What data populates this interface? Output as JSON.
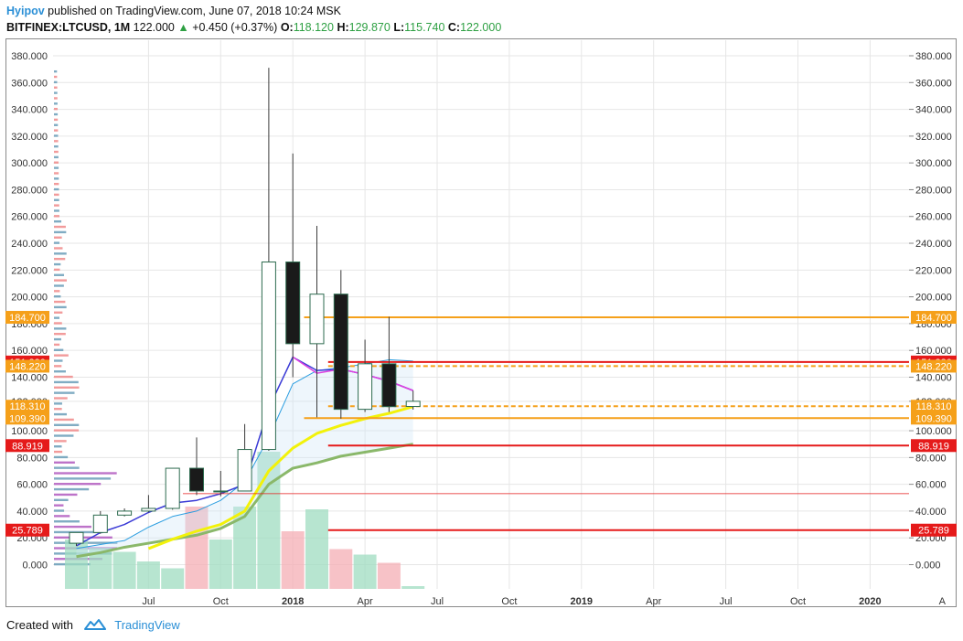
{
  "header": {
    "author": "Hyipov",
    "published_text": " published on TradingView.com, June 07, 2018 10:24 MSK",
    "symbol": "BITFINEX:LTCUSD, 1M",
    "last": "122.000",
    "change": "+0.450 (+0.37%)",
    "o_label": "O:",
    "o_value": "118.120",
    "h_label": "H:",
    "h_value": "129.870",
    "l_label": "L:",
    "l_value": "115.740",
    "c_label": "C:",
    "c_value": "122.000"
  },
  "footer": {
    "created_with": "Created with",
    "brand": "TradingView",
    "logo_icon": "tradingview-logo-icon"
  },
  "colors": {
    "up_body": "#ffffff",
    "down_body": "#1a1a1a",
    "ma_fast": "#3b3bd6",
    "ma_yellow": "#f2f20a",
    "ma_green": "#8ab86a",
    "ma_pink": "#e040e0",
    "orange": "#f5a01a",
    "red": "#e51a1a",
    "vol_up": "#9fdcc0",
    "vol_down": "#f4aeb4"
  },
  "chart_data": {
    "type": "candlestick",
    "symbol": "BITFINEX:LTCUSD",
    "interval": "1M",
    "ylim": [
      -20,
      390
    ],
    "y_ticks": [
      "380.000",
      "360.000",
      "340.000",
      "320.000",
      "300.000",
      "280.000",
      "260.000",
      "240.000",
      "220.000",
      "200.000",
      "180.000",
      "160.000",
      "140.000",
      "122.000",
      "100.000",
      "80.000",
      "60.000",
      "40.000",
      "20.000",
      "0.000"
    ],
    "y_tick_values": [
      380,
      360,
      340,
      320,
      300,
      280,
      260,
      240,
      220,
      200,
      180,
      160,
      140,
      122,
      100,
      80,
      60,
      40,
      20,
      0
    ],
    "x_ticks": [
      "Jul",
      "Oct",
      "2018",
      "Apr",
      "Jul",
      "Oct",
      "2019",
      "Apr",
      "Jul",
      "Oct",
      "2020",
      "A"
    ],
    "x_tick_bold": [
      false,
      false,
      true,
      false,
      false,
      false,
      true,
      false,
      false,
      false,
      true,
      false
    ],
    "x_tick_month_index": [
      6,
      9,
      12,
      15,
      18,
      21,
      24,
      27,
      30,
      33,
      36,
      39
    ],
    "first_month_index": 3,
    "candles": [
      {
        "month": "2017-04",
        "o": 16,
        "h": 24,
        "l": 14,
        "c": 24
      },
      {
        "month": "2017-05",
        "o": 24,
        "h": 40,
        "l": 23,
        "c": 37
      },
      {
        "month": "2017-06",
        "o": 37,
        "h": 42,
        "l": 36,
        "c": 40
      },
      {
        "month": "2017-07",
        "o": 40,
        "h": 52,
        "l": 39,
        "c": 42
      },
      {
        "month": "2017-08",
        "o": 42,
        "h": 72,
        "l": 41,
        "c": 72
      },
      {
        "month": "2017-09",
        "o": 72,
        "h": 95,
        "l": 52,
        "c": 55
      },
      {
        "month": "2017-10",
        "o": 55,
        "h": 70,
        "l": 51,
        "c": 55
      },
      {
        "month": "2017-11",
        "o": 55,
        "h": 105,
        "l": 55,
        "c": 86
      },
      {
        "month": "2017-12",
        "o": 86,
        "h": 371,
        "l": 85,
        "c": 226
      },
      {
        "month": "2018-01",
        "o": 226,
        "h": 307,
        "l": 140,
        "c": 165
      },
      {
        "month": "2018-02",
        "o": 165,
        "h": 253,
        "l": 110,
        "c": 202
      },
      {
        "month": "2018-03",
        "o": 202,
        "h": 220,
        "l": 109,
        "c": 116
      },
      {
        "month": "2018-04",
        "o": 116,
        "h": 168,
        "l": 114,
        "c": 150
      },
      {
        "month": "2018-05",
        "o": 150,
        "h": 185,
        "l": 114,
        "c": 118
      },
      {
        "month": "2018-06",
        "o": 118.12,
        "h": 129.87,
        "l": 115.74,
        "c": 122
      }
    ],
    "volume": [
      {
        "dir": "up",
        "v": 0.36
      },
      {
        "dir": "up",
        "v": 0.3
      },
      {
        "dir": "up",
        "v": 0.27
      },
      {
        "dir": "up",
        "v": 0.2
      },
      {
        "dir": "up",
        "v": 0.15
      },
      {
        "dir": "down",
        "v": 0.6
      },
      {
        "dir": "up",
        "v": 0.36
      },
      {
        "dir": "up",
        "v": 0.6
      },
      {
        "dir": "up",
        "v": 1.0
      },
      {
        "dir": "down",
        "v": 0.42
      },
      {
        "dir": "up",
        "v": 0.58
      },
      {
        "dir": "down",
        "v": 0.29
      },
      {
        "dir": "up",
        "v": 0.25
      },
      {
        "dir": "down",
        "v": 0.19
      },
      {
        "dir": "up",
        "v": 0.02
      }
    ],
    "ma_fast": [
      14,
      24,
      30,
      39,
      46,
      48,
      53,
      60,
      117,
      155,
      145,
      146,
      142,
      137,
      130
    ],
    "ma_pink": [
      null,
      null,
      null,
      null,
      null,
      null,
      null,
      null,
      null,
      155,
      143,
      146,
      142,
      137,
      130
    ],
    "ma_cyan": [
      12,
      15,
      18,
      28,
      36,
      40,
      48,
      62,
      95,
      135,
      145,
      147,
      150,
      153,
      152
    ],
    "ma_yellow": [
      null,
      null,
      null,
      12,
      19,
      25,
      30,
      40,
      70,
      87,
      98,
      104,
      109,
      113,
      118
    ],
    "ma_green": [
      6,
      9,
      13,
      16,
      19,
      22,
      27,
      36,
      60,
      72,
      76,
      81,
      84,
      87,
      90
    ],
    "levels": [
      {
        "label": "184.700",
        "value": 184.7,
        "color": "orange",
        "style": "solid",
        "start_index": 13
      },
      {
        "label": "151.330",
        "value": 151.33,
        "color": "red",
        "style": "solid",
        "start_index": 14
      },
      {
        "label": "148.220",
        "value": 148.22,
        "color": "orange",
        "style": "dashed",
        "start_index": 14
      },
      {
        "label": "122.000",
        "value": 122.0,
        "color": "none",
        "style": "none",
        "start_index": 14
      },
      {
        "label": "118.310",
        "value": 118.31,
        "color": "orange",
        "style": "dashed",
        "start_index": 14
      },
      {
        "label": "109.390",
        "value": 109.39,
        "color": "orange",
        "style": "solid",
        "start_index": 13
      },
      {
        "label": "88.919",
        "value": 88.919,
        "color": "red",
        "style": "solid",
        "start_index": 14
      },
      {
        "label": "25.789",
        "value": 25.789,
        "color": "red",
        "style": "solid",
        "start_index": 14
      }
    ],
    "right_badges": [
      {
        "text": "184.700",
        "value": 184.7,
        "color": "orange"
      },
      {
        "text": "151.330",
        "value": 151.33,
        "color": "red"
      },
      {
        "text": "148.220",
        "value": 148.22,
        "color": "orange"
      },
      {
        "text": "118.310",
        "value": 118.31,
        "color": "orange"
      },
      {
        "text": "109.390",
        "value": 109.39,
        "color": "orange"
      },
      {
        "text": "88.919",
        "value": 88.919,
        "color": "red"
      },
      {
        "text": "25.789",
        "value": 25.789,
        "color": "red"
      }
    ],
    "left_badges": [
      {
        "text": "184.700",
        "value": 184.7,
        "color": "orange"
      },
      {
        "text": "151.330",
        "value": 151.33,
        "color": "red"
      },
      {
        "text": "148.220",
        "value": 148.22,
        "color": "orange"
      },
      {
        "text": "118.310",
        "value": 118.31,
        "color": "orange"
      },
      {
        "text": "109.390",
        "value": 109.39,
        "color": "orange"
      },
      {
        "text": "88.919",
        "value": 88.919,
        "color": "red"
      },
      {
        "text": "25.789",
        "value": 25.789,
        "color": "red"
      }
    ],
    "grid": true,
    "legend": "none"
  }
}
